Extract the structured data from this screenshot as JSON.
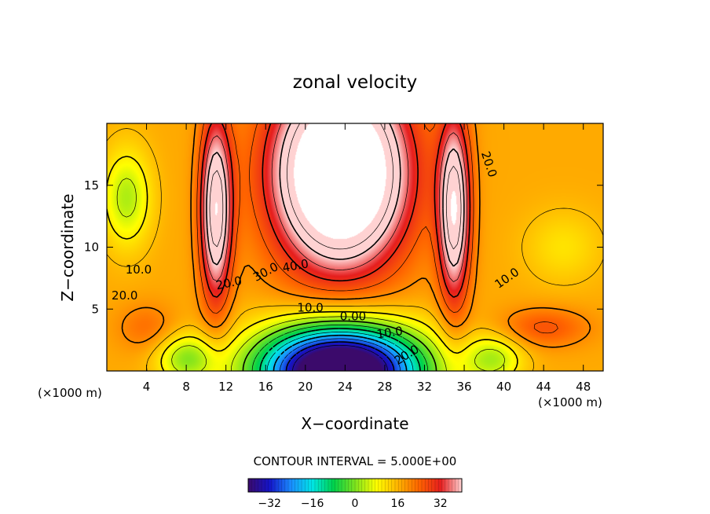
{
  "chart_data": {
    "type": "heatmap",
    "title": "zonal velocity",
    "xlabel": "X−coordinate",
    "ylabel": "Z−coordinate",
    "x_unit_left": "(×1000 m)",
    "x_unit_right": "(×1000 m)",
    "xlim": [
      0,
      50
    ],
    "ylim": [
      0,
      20
    ],
    "x_ticks": [
      4,
      8,
      12,
      16,
      20,
      24,
      28,
      32,
      36,
      40,
      44,
      48
    ],
    "y_ticks": [
      5,
      10,
      15
    ],
    "contour_interval_text": "CONTOUR INTERVAL = 5.000E+00",
    "contour_interval": 5,
    "colorbar": {
      "min": -40,
      "max": 40,
      "ticks": [
        -32,
        -16,
        0,
        16,
        32
      ]
    },
    "contour_labels": [
      {
        "text": "10.0",
        "x": 3.2,
        "y": 8.2,
        "angle": 0
      },
      {
        "text": "20.0",
        "x": 1.8,
        "y": 6.1,
        "angle": 0
      },
      {
        "text": "20.0",
        "x": 12.3,
        "y": 7.1,
        "angle": 12
      },
      {
        "text": "30.0",
        "x": 16.0,
        "y": 8.0,
        "angle": 28
      },
      {
        "text": "40.0",
        "x": 19.0,
        "y": 8.5,
        "angle": 10
      },
      {
        "text": "10.0",
        "x": 20.5,
        "y": 5.1,
        "angle": 0
      },
      {
        "text": "0.00",
        "x": 24.8,
        "y": 4.4,
        "angle": 0
      },
      {
        "text": "10.0",
        "x": 28.5,
        "y": 3.1,
        "angle": 8
      },
      {
        "text": "20.0",
        "x": 30.2,
        "y": 1.3,
        "angle": 32
      },
      {
        "text": "20.0",
        "x": 38.5,
        "y": 16.7,
        "angle": -72
      },
      {
        "text": "10.0",
        "x": 40.3,
        "y": 7.5,
        "angle": 35
      }
    ],
    "contour_levels": [
      -35,
      -30,
      -25,
      -20,
      -15,
      -10,
      -5,
      0,
      5,
      10,
      15,
      20,
      25,
      30,
      35,
      40,
      45
    ],
    "cutoff_white_above": 50,
    "colors": {
      "stops": [
        "#3b0a6b",
        "#1414c8",
        "#1a8cff",
        "#00e6e6",
        "#00d24b",
        "#7de31e",
        "#ffff00",
        "#ffb400",
        "#ff6400",
        "#e61e1e",
        "#ffd2d2"
      ],
      "frame": "#000000"
    }
  }
}
